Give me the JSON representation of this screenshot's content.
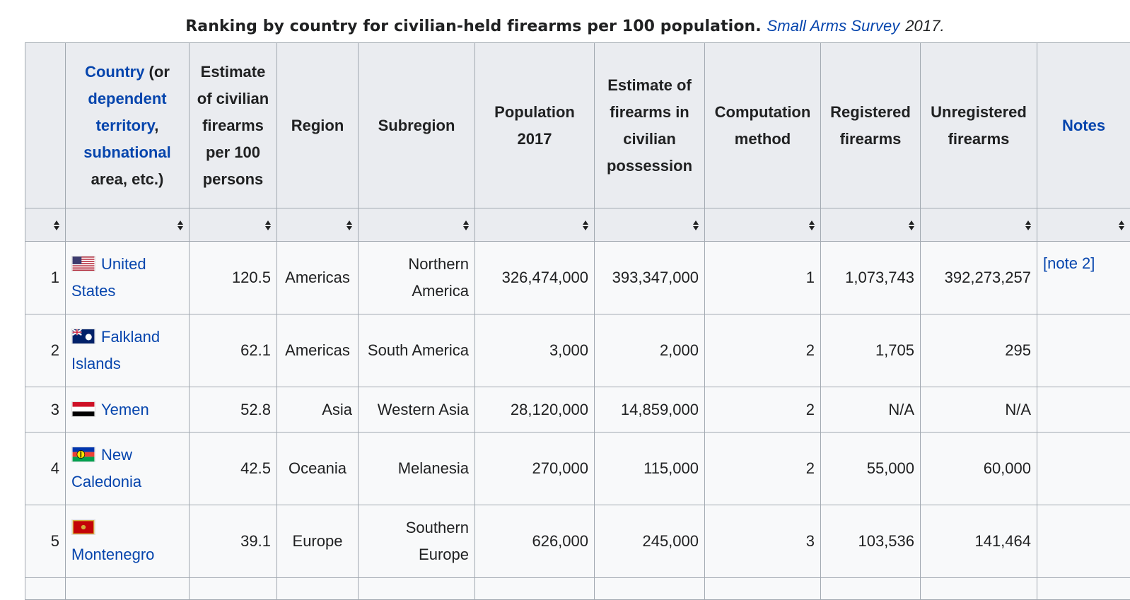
{
  "caption": {
    "text": "Ranking by country for civilian-held firearms per 100 population.",
    "source_link": "Small Arms Survey",
    "year": "2017."
  },
  "headers": {
    "country_link_1": "Country",
    "country_text_1": " (or ",
    "country_link_2": "dependent territory",
    "country_text_2": ", ",
    "country_link_3": "subnational",
    "country_text_3": " area, etc.)",
    "estimate_per_100": "Estimate of civilian firearms per 100 persons",
    "region": "Region",
    "subregion": "Subregion",
    "population": "Population 2017",
    "estimate_firearms": "Estimate of firearms in civilian possession",
    "computation": "Computation method",
    "registered": "Registered firearms",
    "unregistered": "Unregistered firearms",
    "notes": "Notes"
  },
  "rows": [
    {
      "rank": "1",
      "country": "United States",
      "flag": "us-flag",
      "per100": "120.5",
      "region": "Americas",
      "subregion": "Northern America",
      "population": "326,474,000",
      "firearms": "393,347,000",
      "method": "1",
      "registered": "1,073,743",
      "unregistered": "392,273,257",
      "notes": "[note 2]"
    },
    {
      "rank": "2",
      "country": "Falkland Islands",
      "flag": "falklands-flag",
      "per100": "62.1",
      "region": "Americas",
      "subregion": "South America",
      "population": "3,000",
      "firearms": "2,000",
      "method": "2",
      "registered": "1,705",
      "unregistered": "295",
      "notes": ""
    },
    {
      "rank": "3",
      "country": "Yemen",
      "flag": "yemen-flag",
      "per100": "52.8",
      "region": "Asia",
      "subregion": "Western Asia",
      "population": "28,120,000",
      "firearms": "14,859,000",
      "method": "2",
      "registered": "N/A",
      "unregistered": "N/A",
      "notes": ""
    },
    {
      "rank": "4",
      "country": "New Caledonia",
      "flag": "new-caledonia-flag",
      "per100": "42.5",
      "region": "Oceania",
      "subregion": "Melanesia",
      "population": "270,000",
      "firearms": "115,000",
      "method": "2",
      "registered": "55,000",
      "unregistered": "60,000",
      "notes": ""
    },
    {
      "rank": "5",
      "country": "Montenegro",
      "flag": "montenegro-flag",
      "per100": "39.1",
      "region": "Europe",
      "subregion": "Southern Europe",
      "population": "626,000",
      "firearms": "245,000",
      "method": "3",
      "registered": "103,536",
      "unregistered": "141,464",
      "notes": ""
    }
  ]
}
